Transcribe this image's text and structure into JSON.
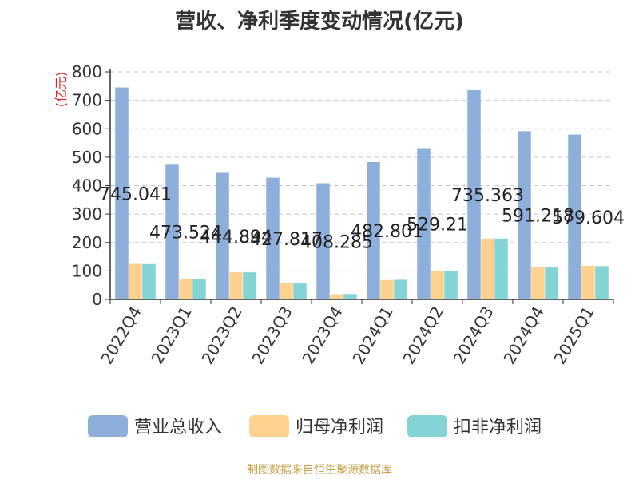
{
  "title": "营收、净利季度变动情况(亿元)",
  "source": "制图数据来自恒生聚源数据库",
  "chart_data": {
    "type": "bar",
    "unit_label": "(亿元)",
    "categories": [
      "2022Q4",
      "2023Q1",
      "2023Q2",
      "2023Q3",
      "2023Q4",
      "2024Q1",
      "2024Q2",
      "2024Q3",
      "2024Q4",
      "2025Q1"
    ],
    "ylim": [
      0,
      800
    ],
    "yticks": [
      0,
      100,
      200,
      300,
      400,
      500,
      600,
      700,
      800
    ],
    "grid": true,
    "legend_position": "bottom",
    "series": [
      {
        "name": "营业总收入",
        "color": "#8eaedb",
        "values": [
          745.041,
          473.524,
          444.894,
          427.817,
          408.285,
          482.801,
          529.21,
          735.363,
          591.218,
          579.604
        ],
        "labels": [
          "745.041",
          "473.524",
          "444.894",
          "427.817",
          "408.285",
          "482.801",
          "529.21",
          "735.363",
          "591.218",
          "579.604"
        ]
      },
      {
        "name": "归母净利润",
        "color": "#fdd28f",
        "values": [
          125,
          73,
          95,
          57,
          18,
          68,
          101,
          214,
          113,
          118
        ]
      },
      {
        "name": "扣非净利润",
        "color": "#84d4d6",
        "values": [
          124,
          73,
          95,
          56,
          19,
          69,
          101,
          214,
          112,
          117
        ]
      }
    ]
  }
}
